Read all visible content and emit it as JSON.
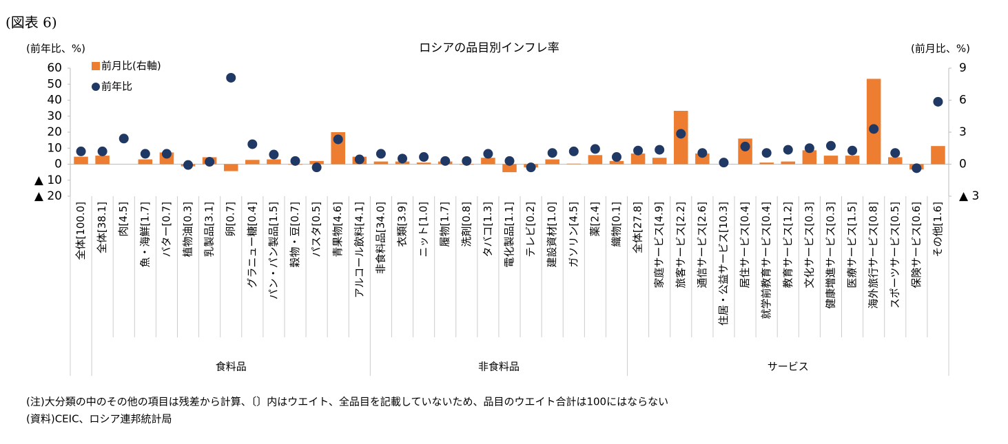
{
  "header": "(図表 6)",
  "chart_data": {
    "type": "bar-dot",
    "title": "ロシアの品目別インフレ率",
    "y_label": "(前年比、%)",
    "y2_label": "(前月比、%)",
    "categories": [
      "全体[100.0]",
      "全体[38.1]",
      "肉[4.5]",
      "魚・海鮮[1.7]",
      "バター[0.7]",
      "植物油[0.3]",
      "乳製品[3.1]",
      "卵[0.7]",
      "グラニュー糖[0.4]",
      "パン・パン製品[1.5]",
      "穀物・豆[0.7]",
      "パスタ[0.5]",
      "青果物[4.6]",
      "アルコール飲料[4.1]",
      "非食料品[34.0]",
      "衣類[3.9]",
      "ニット[1.0]",
      "履物[1.7]",
      "洗剤[0.8]",
      "タバコ[1.3]",
      "電化製品[1.1]",
      "テレビ[0.2]",
      "建設資材[1.0]",
      "ガソリン[4.5]",
      "薬[2.4]",
      "織物[0.1]",
      "全体[27.8]",
      "家庭サービス[4.9]",
      "旅客サービス[2.2]",
      "通信サービス[2.6]",
      "住居・公益サービス[10.3]",
      "居住サービス[0.4]",
      "就学前教育サービス[0.4]",
      "教育サービス[1.2]",
      "文化サービス[0.3]",
      "健康増進サービス[0.3]",
      "医療サービス[1.5]",
      "海外旅行サービス[0.8]",
      "スポーツサービス[0.5]",
      "保険サービス[0.6]",
      "その他[1.6]"
    ],
    "groups": [
      {
        "label": "食料品",
        "first": 1,
        "last": 13
      },
      {
        "label": "非食料品",
        "first": 14,
        "last": 25
      },
      {
        "label": "サービス",
        "first": 26,
        "last": 40
      }
    ],
    "series": [
      {
        "name": "前月比(右軸)",
        "kind": "bar",
        "axis": "y2",
        "color": "#ed7d31",
        "values": [
          0.7,
          0.8,
          0,
          0.45,
          1.1,
          -0.2,
          0.65,
          -0.65,
          0.4,
          0.45,
          -0.05,
          0.3,
          3.0,
          0.7,
          0.25,
          0.25,
          0.15,
          0.25,
          -0.05,
          0.6,
          -0.75,
          -0.3,
          0.45,
          0.05,
          0.85,
          0.3,
          1.0,
          0.6,
          5.0,
          1.0,
          0,
          2.4,
          0.15,
          0.25,
          1.3,
          0.8,
          0.8,
          8.0,
          0.65,
          -0.5,
          1.7
        ]
      },
      {
        "name": "前年比",
        "kind": "dot",
        "color": "#1f3864",
        "values": [
          8,
          8,
          16,
          6.5,
          6.5,
          -0.5,
          1.5,
          54,
          12.5,
          6,
          2,
          -2,
          15.5,
          3,
          6.5,
          3.5,
          4.5,
          2,
          2,
          6.5,
          2,
          -2,
          7,
          8,
          9.5,
          4.5,
          8.5,
          9,
          19,
          7,
          1,
          11,
          7,
          9,
          10,
          11.5,
          8.5,
          22,
          7,
          -2.5,
          39
        ]
      }
    ],
    "ylim": [
      -20,
      60
    ],
    "yticks": [
      {
        "value": -20,
        "label": "▲ 20"
      },
      {
        "value": -10,
        "label": "▲ 10"
      },
      0,
      10,
      20,
      30,
      40,
      50,
      60
    ],
    "y2lim": [
      -3,
      9
    ],
    "y2ticks": [
      {
        "value": -3,
        "label": "▲ 3"
      },
      0,
      3,
      6,
      9
    ]
  },
  "notes": [
    "(注)大分類の中のその他の項目は残差から計算、〔〕内はウエイト、全品目を記載していないため、品目のウエイト合計は100にはならない",
    "(資料)CEIC、ロシア連邦統計局"
  ]
}
